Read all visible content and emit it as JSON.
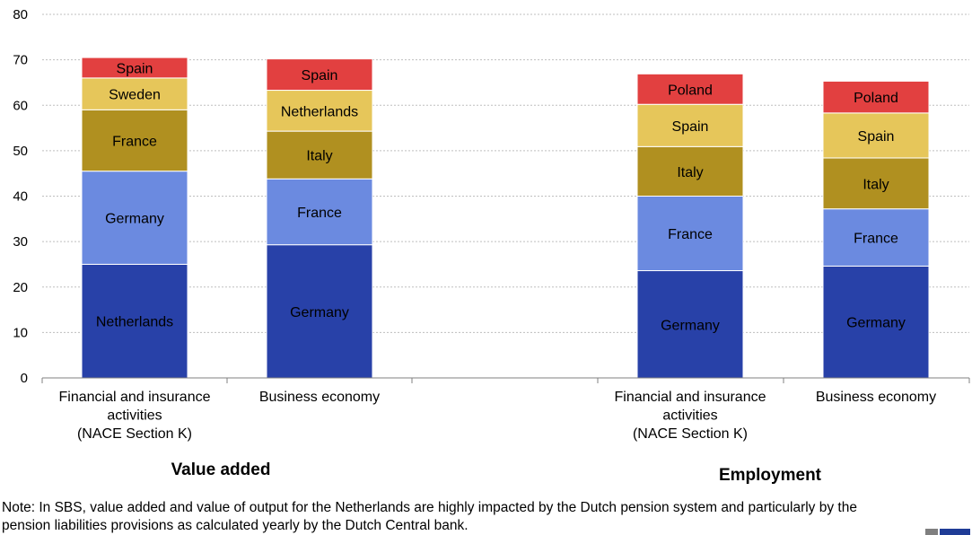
{
  "chart_data": {
    "type": "bar",
    "stacked": true,
    "y_axis": {
      "min": 0,
      "max": 80,
      "step": 10,
      "ticks": [
        "0",
        "10",
        "20",
        "30",
        "40",
        "50",
        "60",
        "70",
        "80"
      ],
      "gridlines": true
    },
    "groups": [
      {
        "title": "Value added",
        "categories": [
          {
            "label": [
              "Financial and insurance",
              "activities",
              "(NACE Section K)"
            ],
            "segments": [
              {
                "name": "Netherlands",
                "value": 25.0,
                "color": "#2841a8"
              },
              {
                "name": "Germany",
                "value": 20.5,
                "color": "#6b8ae0"
              },
              {
                "name": "France",
                "value": 13.5,
                "color": "#b09020"
              },
              {
                "name": "Sweden",
                "value": 7.0,
                "color": "#e6c65a"
              },
              {
                "name": "Spain",
                "value": 4.5,
                "color": "#e24040"
              }
            ]
          },
          {
            "label": [
              "Business economy"
            ],
            "segments": [
              {
                "name": "Germany",
                "value": 29.3,
                "color": "#2841a8"
              },
              {
                "name": "France",
                "value": 14.5,
                "color": "#6b8ae0"
              },
              {
                "name": "Italy",
                "value": 10.5,
                "color": "#b09020"
              },
              {
                "name": "Netherlands",
                "value": 9.0,
                "color": "#e6c65a"
              },
              {
                "name": "Spain",
                "value": 6.9,
                "color": "#e24040"
              }
            ]
          }
        ]
      },
      {
        "title": "Employment",
        "categories": [
          {
            "label": [
              "Financial and insurance",
              "activities",
              "(NACE Section K)"
            ],
            "segments": [
              {
                "name": "Germany",
                "value": 23.6,
                "color": "#2841a8"
              },
              {
                "name": "France",
                "value": 16.4,
                "color": "#6b8ae0"
              },
              {
                "name": "Italy",
                "value": 10.9,
                "color": "#b09020"
              },
              {
                "name": "Spain",
                "value": 9.3,
                "color": "#e6c65a"
              },
              {
                "name": "Poland",
                "value": 6.7,
                "color": "#e24040"
              }
            ]
          },
          {
            "label": [
              "Business economy"
            ],
            "segments": [
              {
                "name": "Germany",
                "value": 24.6,
                "color": "#2841a8"
              },
              {
                "name": "France",
                "value": 12.6,
                "color": "#6b8ae0"
              },
              {
                "name": "Italy",
                "value": 11.2,
                "color": "#b09020"
              },
              {
                "name": "Spain",
                "value": 9.9,
                "color": "#e6c65a"
              },
              {
                "name": "Poland",
                "value": 7.0,
                "color": "#e24040"
              }
            ]
          }
        ]
      }
    ]
  },
  "note": "Note: In SBS, value added and value of output for the Netherlands are highly impacted by the Dutch pension system and particularly by the pension liabilities provisions as calculated yearly by the Dutch Central bank.",
  "colors": {
    "gridline": "#bfbfbf",
    "axis": "#808080",
    "label_light": "#ffffff",
    "label_dark": "#000000",
    "logo_dark": "#7f7f7f",
    "logo_blue": "#1f3c96"
  }
}
